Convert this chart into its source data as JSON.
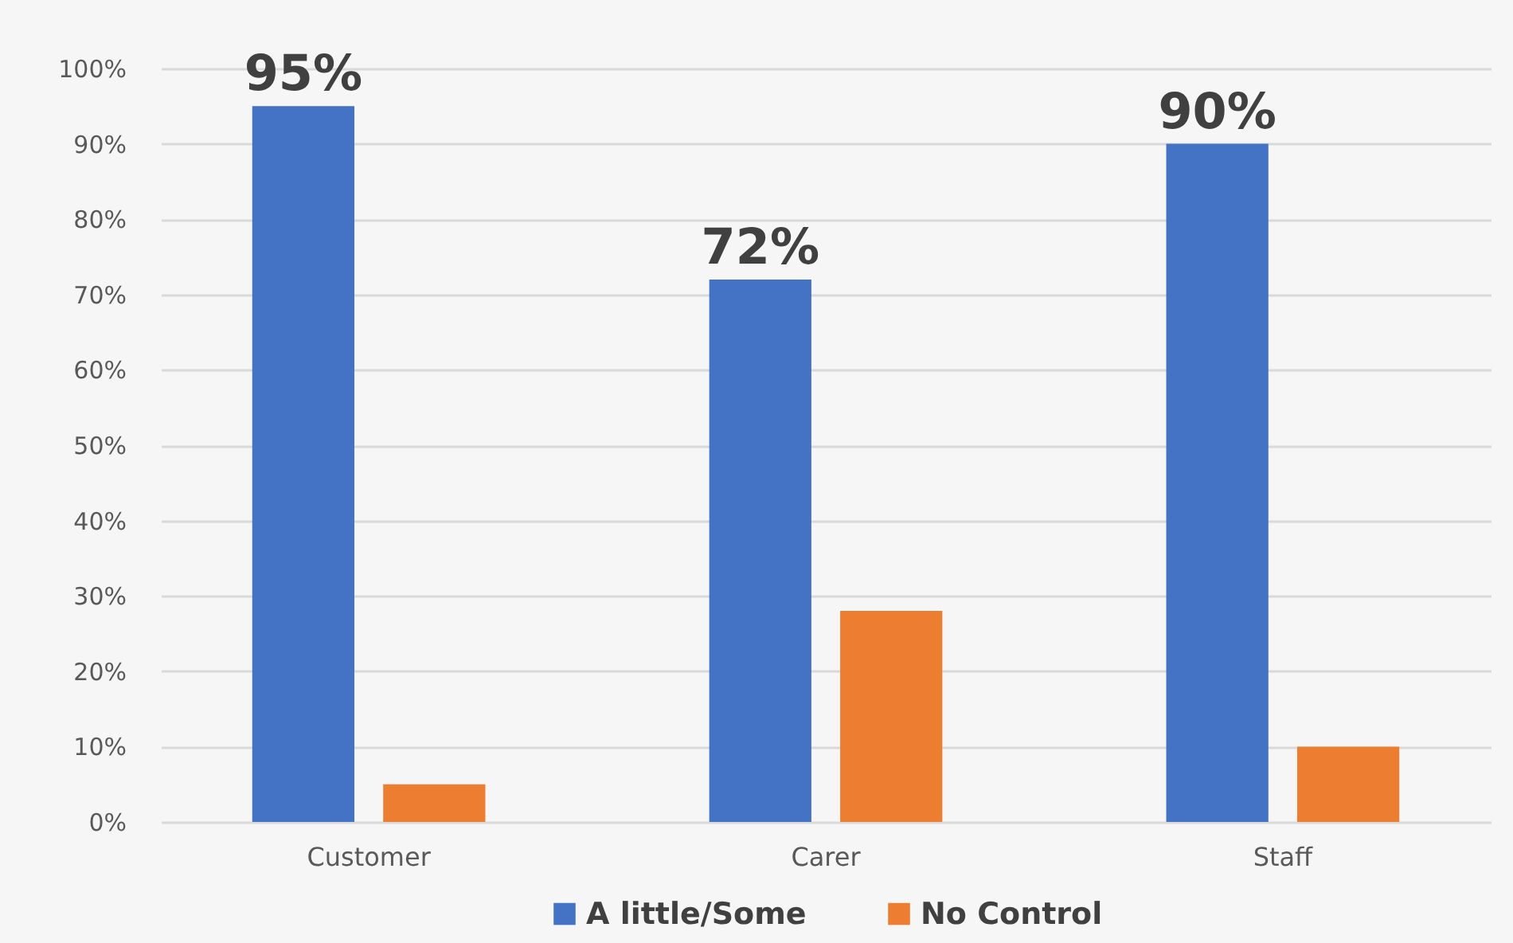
{
  "chart_data": {
    "type": "bar",
    "categories": [
      "Customer",
      "Carer",
      "Staff"
    ],
    "series": [
      {
        "name": "A little/Some",
        "color": "#4472c4",
        "values": [
          95,
          72,
          90
        ],
        "value_labels": [
          "95%",
          "72%",
          "90%"
        ]
      },
      {
        "name": "No Control",
        "color": "#ed7d31",
        "values": [
          5,
          28,
          10
        ]
      }
    ],
    "ylim": [
      0,
      100
    ],
    "yticks": [
      {
        "value": 0,
        "label": "0%"
      },
      {
        "value": 10,
        "label": "10%"
      },
      {
        "value": 20,
        "label": "20%"
      },
      {
        "value": 30,
        "label": "30%"
      },
      {
        "value": 40,
        "label": "40%"
      },
      {
        "value": 50,
        "label": "50%"
      },
      {
        "value": 60,
        "label": "60%"
      },
      {
        "value": 70,
        "label": "70%"
      },
      {
        "value": 80,
        "label": "80%"
      },
      {
        "value": 90,
        "label": "90%"
      },
      {
        "value": 100,
        "label": "100%"
      }
    ],
    "grid": "y",
    "legend": "bottom"
  }
}
